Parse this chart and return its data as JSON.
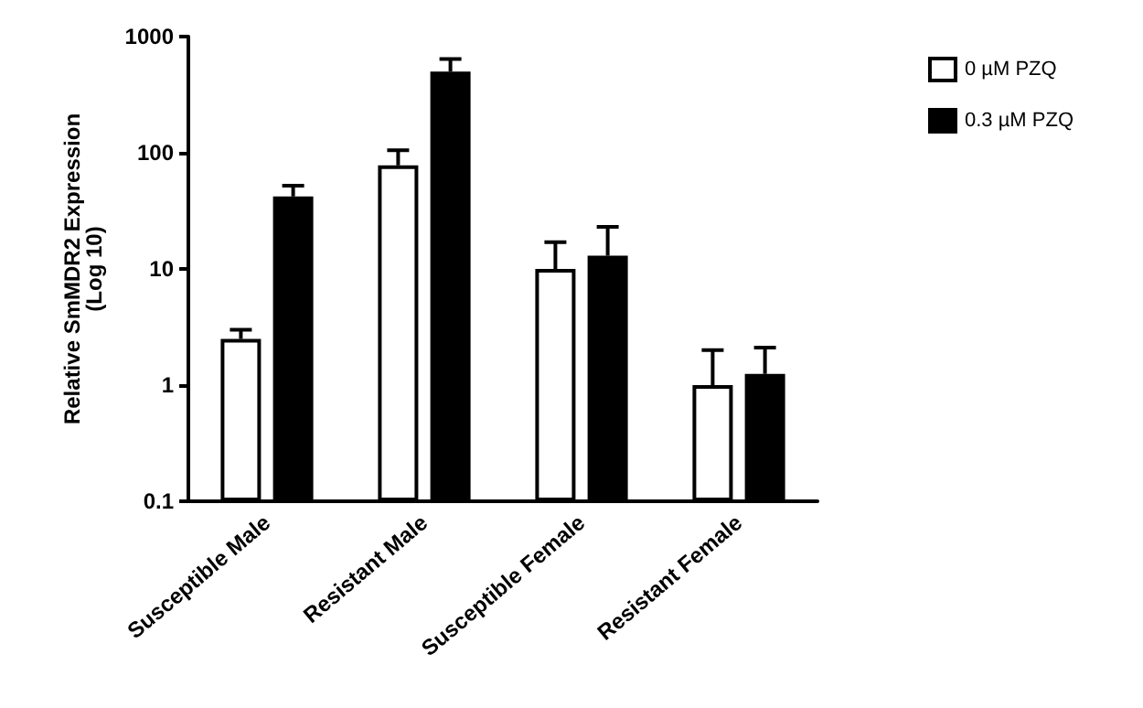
{
  "chart_data": {
    "type": "bar",
    "ylabel": "Relative SmMDR2 Expression\n(Log 10)",
    "categories": [
      "Susceptible Male",
      "Resistant Male",
      "Susceptible Female",
      "Resistant Female"
    ],
    "series": [
      {
        "name": "0 µM PZQ",
        "color": "#ffffff",
        "values": [
          2.5,
          78,
          10,
          1.0
        ],
        "errors": [
          [
            2.5,
            3.0
          ],
          [
            78,
            105
          ],
          [
            10,
            17
          ],
          [
            1.0,
            2.0
          ]
        ]
      },
      {
        "name": "0.3 µM PZQ",
        "color": "#000000",
        "values": [
          42,
          500,
          13,
          1.25
        ],
        "errors": [
          [
            42,
            52
          ],
          [
            500,
            640
          ],
          [
            13,
            23
          ],
          [
            1.25,
            2.1
          ]
        ]
      }
    ],
    "log": true,
    "ylim": [
      0.1,
      1000
    ],
    "yticks": [
      0.1,
      1,
      10,
      100,
      1000
    ],
    "grid": false,
    "legend": "top right"
  }
}
